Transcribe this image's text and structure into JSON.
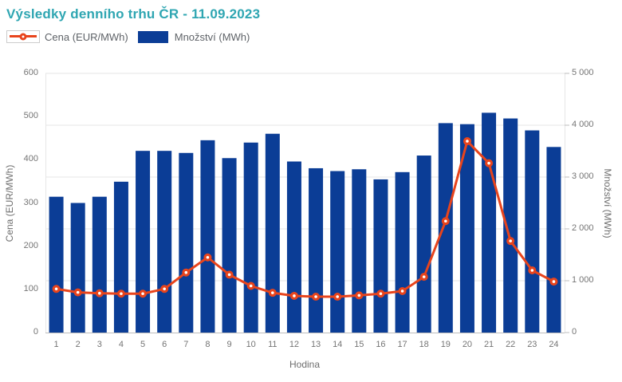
{
  "title": "Výsledky denního trhu ČR - 11.09.2023",
  "legend": {
    "price_label": "Cena (EUR/MWh)",
    "volume_label": "Množství (MWh)"
  },
  "colors": {
    "title": "#2fa6b2",
    "price_line": "#e8441c",
    "marker_center": "#ffffff",
    "volume_bar": "#0b3d96",
    "grid": "#e6e6e6",
    "axis_line": "#bdbdbd",
    "tick_text": "#757575",
    "legend_text": "#5f6368"
  },
  "chart_data": {
    "type": "combo",
    "title": "Výsledky denního trhu ČR - 11.09.2023",
    "xlabel": "Hodina",
    "ylabel_left": "Cena (EUR/MWh)",
    "ylabel_right": "Množství (MWh)",
    "categories": [
      "1",
      "2",
      "3",
      "4",
      "5",
      "6",
      "7",
      "8",
      "9",
      "10",
      "11",
      "12",
      "13",
      "14",
      "15",
      "16",
      "17",
      "18",
      "19",
      "20",
      "21",
      "22",
      "23",
      "24"
    ],
    "series": [
      {
        "name": "Cena (EUR/MWh)",
        "type": "line",
        "axis": "left",
        "values": [
          101,
          93,
          91,
          90,
          90,
          101,
          139,
          174,
          134,
          108,
          92,
          85,
          83,
          83,
          86,
          90,
          96,
          129,
          258,
          443,
          392,
          212,
          144,
          118
        ]
      },
      {
        "name": "Množství (MWh)",
        "type": "bar",
        "axis": "right",
        "values": [
          2620,
          2500,
          2620,
          2910,
          3505,
          3505,
          3465,
          3710,
          3365,
          3665,
          3835,
          3300,
          3170,
          3115,
          3150,
          2955,
          3095,
          3415,
          4040,
          4020,
          4240,
          4130,
          3900,
          3580
        ]
      }
    ],
    "ylim_left": [
      0,
      600
    ],
    "ylim_right": [
      0,
      5000
    ],
    "yticks_left": [
      "0",
      "100",
      "200",
      "300",
      "400",
      "500",
      "600"
    ],
    "yticks_right": [
      "0",
      "1 000",
      "2 000",
      "3 000",
      "4 000",
      "5 000"
    ],
    "grid": "horizontal",
    "legend_position": "top-left"
  }
}
